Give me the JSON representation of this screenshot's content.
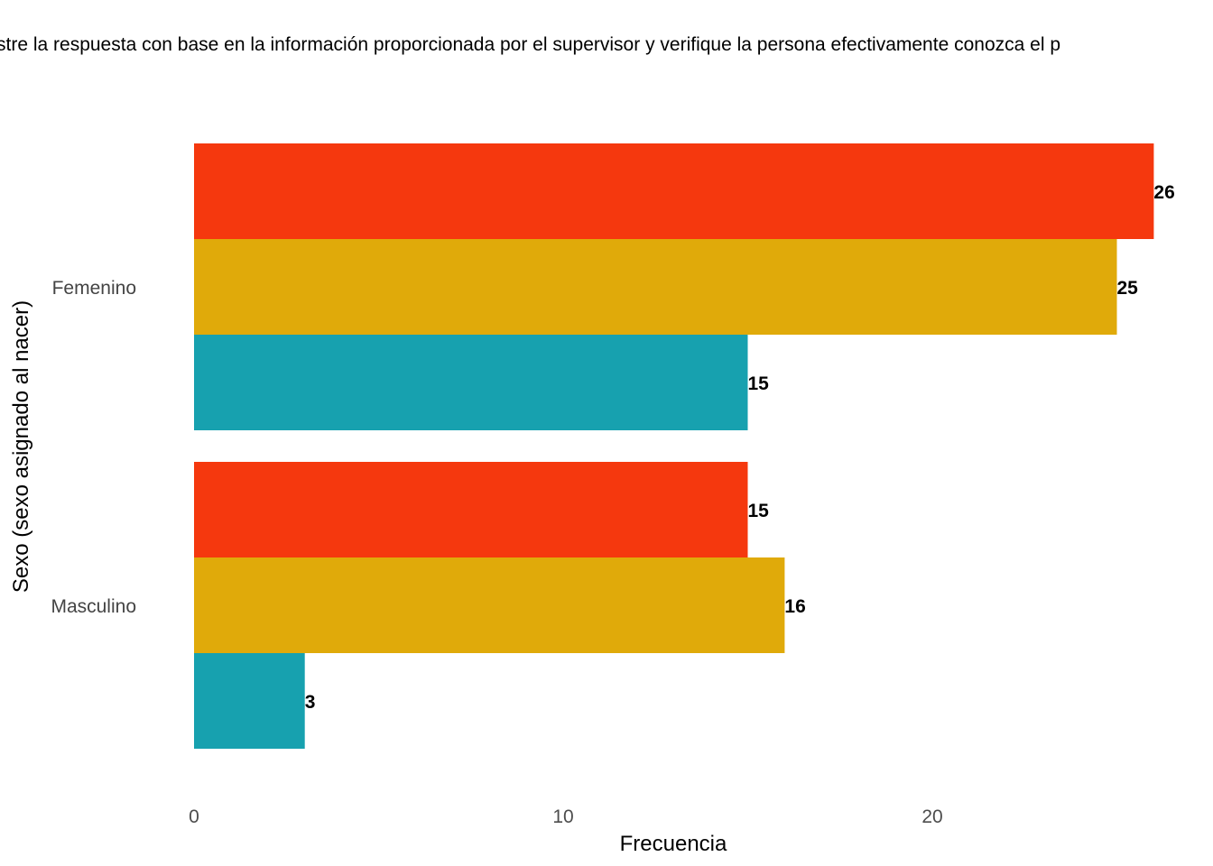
{
  "chart_data": {
    "type": "bar",
    "orientation": "horizontal",
    "title": "stre la respuesta con base en la información proporcionada por el supervisor y verifique la persona efectivamente conozca el p",
    "xlabel": "Frecuencia",
    "ylabel": "Sexo (sexo asignado al nacer)",
    "categories": [
      "Femenino",
      "Masculino"
    ],
    "series": [
      {
        "color": "#F5380E",
        "values": [
          26,
          15
        ]
      },
      {
        "color": "#E0AA0A",
        "values": [
          25,
          16
        ]
      },
      {
        "color": "#17A1AF",
        "values": [
          15,
          3
        ]
      }
    ],
    "xlim": [
      0,
      26
    ],
    "xticks": [
      0,
      10,
      20
    ],
    "grid": false,
    "legend": "none"
  }
}
